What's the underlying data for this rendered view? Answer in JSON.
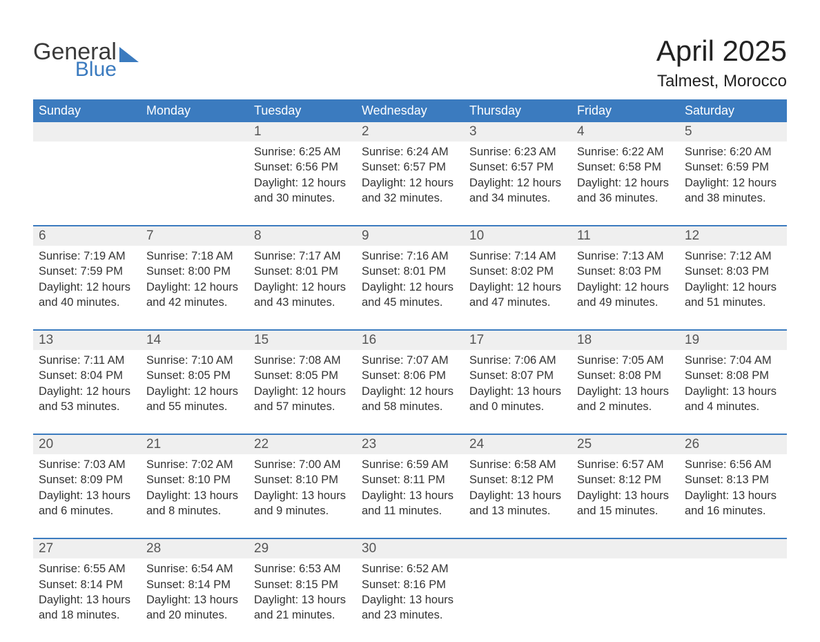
{
  "logo": {
    "word1": "General",
    "word2": "Blue",
    "shape_color": "#3b7bbf"
  },
  "title": "April 2025",
  "location": "Talmest, Morocco",
  "colors": {
    "header_bg": "#3b7bbf",
    "header_text": "#ffffff",
    "daynum_bg": "#efefef",
    "week_border": "#3b7bbf",
    "body_text": "#333333"
  },
  "weekdays": [
    "Sunday",
    "Monday",
    "Tuesday",
    "Wednesday",
    "Thursday",
    "Friday",
    "Saturday"
  ],
  "weeks": [
    [
      {},
      {},
      {
        "day": "1",
        "sunrise": "Sunrise: 6:25 AM",
        "sunset": "Sunset: 6:56 PM",
        "dl1": "Daylight: 12 hours",
        "dl2": "and 30 minutes."
      },
      {
        "day": "2",
        "sunrise": "Sunrise: 6:24 AM",
        "sunset": "Sunset: 6:57 PM",
        "dl1": "Daylight: 12 hours",
        "dl2": "and 32 minutes."
      },
      {
        "day": "3",
        "sunrise": "Sunrise: 6:23 AM",
        "sunset": "Sunset: 6:57 PM",
        "dl1": "Daylight: 12 hours",
        "dl2": "and 34 minutes."
      },
      {
        "day": "4",
        "sunrise": "Sunrise: 6:22 AM",
        "sunset": "Sunset: 6:58 PM",
        "dl1": "Daylight: 12 hours",
        "dl2": "and 36 minutes."
      },
      {
        "day": "5",
        "sunrise": "Sunrise: 6:20 AM",
        "sunset": "Sunset: 6:59 PM",
        "dl1": "Daylight: 12 hours",
        "dl2": "and 38 minutes."
      }
    ],
    [
      {
        "day": "6",
        "sunrise": "Sunrise: 7:19 AM",
        "sunset": "Sunset: 7:59 PM",
        "dl1": "Daylight: 12 hours",
        "dl2": "and 40 minutes."
      },
      {
        "day": "7",
        "sunrise": "Sunrise: 7:18 AM",
        "sunset": "Sunset: 8:00 PM",
        "dl1": "Daylight: 12 hours",
        "dl2": "and 42 minutes."
      },
      {
        "day": "8",
        "sunrise": "Sunrise: 7:17 AM",
        "sunset": "Sunset: 8:01 PM",
        "dl1": "Daylight: 12 hours",
        "dl2": "and 43 minutes."
      },
      {
        "day": "9",
        "sunrise": "Sunrise: 7:16 AM",
        "sunset": "Sunset: 8:01 PM",
        "dl1": "Daylight: 12 hours",
        "dl2": "and 45 minutes."
      },
      {
        "day": "10",
        "sunrise": "Sunrise: 7:14 AM",
        "sunset": "Sunset: 8:02 PM",
        "dl1": "Daylight: 12 hours",
        "dl2": "and 47 minutes."
      },
      {
        "day": "11",
        "sunrise": "Sunrise: 7:13 AM",
        "sunset": "Sunset: 8:03 PM",
        "dl1": "Daylight: 12 hours",
        "dl2": "and 49 minutes."
      },
      {
        "day": "12",
        "sunrise": "Sunrise: 7:12 AM",
        "sunset": "Sunset: 8:03 PM",
        "dl1": "Daylight: 12 hours",
        "dl2": "and 51 minutes."
      }
    ],
    [
      {
        "day": "13",
        "sunrise": "Sunrise: 7:11 AM",
        "sunset": "Sunset: 8:04 PM",
        "dl1": "Daylight: 12 hours",
        "dl2": "and 53 minutes."
      },
      {
        "day": "14",
        "sunrise": "Sunrise: 7:10 AM",
        "sunset": "Sunset: 8:05 PM",
        "dl1": "Daylight: 12 hours",
        "dl2": "and 55 minutes."
      },
      {
        "day": "15",
        "sunrise": "Sunrise: 7:08 AM",
        "sunset": "Sunset: 8:05 PM",
        "dl1": "Daylight: 12 hours",
        "dl2": "and 57 minutes."
      },
      {
        "day": "16",
        "sunrise": "Sunrise: 7:07 AM",
        "sunset": "Sunset: 8:06 PM",
        "dl1": "Daylight: 12 hours",
        "dl2": "and 58 minutes."
      },
      {
        "day": "17",
        "sunrise": "Sunrise: 7:06 AM",
        "sunset": "Sunset: 8:07 PM",
        "dl1": "Daylight: 13 hours",
        "dl2": "and 0 minutes."
      },
      {
        "day": "18",
        "sunrise": "Sunrise: 7:05 AM",
        "sunset": "Sunset: 8:08 PM",
        "dl1": "Daylight: 13 hours",
        "dl2": "and 2 minutes."
      },
      {
        "day": "19",
        "sunrise": "Sunrise: 7:04 AM",
        "sunset": "Sunset: 8:08 PM",
        "dl1": "Daylight: 13 hours",
        "dl2": "and 4 minutes."
      }
    ],
    [
      {
        "day": "20",
        "sunrise": "Sunrise: 7:03 AM",
        "sunset": "Sunset: 8:09 PM",
        "dl1": "Daylight: 13 hours",
        "dl2": "and 6 minutes."
      },
      {
        "day": "21",
        "sunrise": "Sunrise: 7:02 AM",
        "sunset": "Sunset: 8:10 PM",
        "dl1": "Daylight: 13 hours",
        "dl2": "and 8 minutes."
      },
      {
        "day": "22",
        "sunrise": "Sunrise: 7:00 AM",
        "sunset": "Sunset: 8:10 PM",
        "dl1": "Daylight: 13 hours",
        "dl2": "and 9 minutes."
      },
      {
        "day": "23",
        "sunrise": "Sunrise: 6:59 AM",
        "sunset": "Sunset: 8:11 PM",
        "dl1": "Daylight: 13 hours",
        "dl2": "and 11 minutes."
      },
      {
        "day": "24",
        "sunrise": "Sunrise: 6:58 AM",
        "sunset": "Sunset: 8:12 PM",
        "dl1": "Daylight: 13 hours",
        "dl2": "and 13 minutes."
      },
      {
        "day": "25",
        "sunrise": "Sunrise: 6:57 AM",
        "sunset": "Sunset: 8:12 PM",
        "dl1": "Daylight: 13 hours",
        "dl2": "and 15 minutes."
      },
      {
        "day": "26",
        "sunrise": "Sunrise: 6:56 AM",
        "sunset": "Sunset: 8:13 PM",
        "dl1": "Daylight: 13 hours",
        "dl2": "and 16 minutes."
      }
    ],
    [
      {
        "day": "27",
        "sunrise": "Sunrise: 6:55 AM",
        "sunset": "Sunset: 8:14 PM",
        "dl1": "Daylight: 13 hours",
        "dl2": "and 18 minutes."
      },
      {
        "day": "28",
        "sunrise": "Sunrise: 6:54 AM",
        "sunset": "Sunset: 8:14 PM",
        "dl1": "Daylight: 13 hours",
        "dl2": "and 20 minutes."
      },
      {
        "day": "29",
        "sunrise": "Sunrise: 6:53 AM",
        "sunset": "Sunset: 8:15 PM",
        "dl1": "Daylight: 13 hours",
        "dl2": "and 21 minutes."
      },
      {
        "day": "30",
        "sunrise": "Sunrise: 6:52 AM",
        "sunset": "Sunset: 8:16 PM",
        "dl1": "Daylight: 13 hours",
        "dl2": "and 23 minutes."
      },
      {},
      {},
      {}
    ]
  ]
}
